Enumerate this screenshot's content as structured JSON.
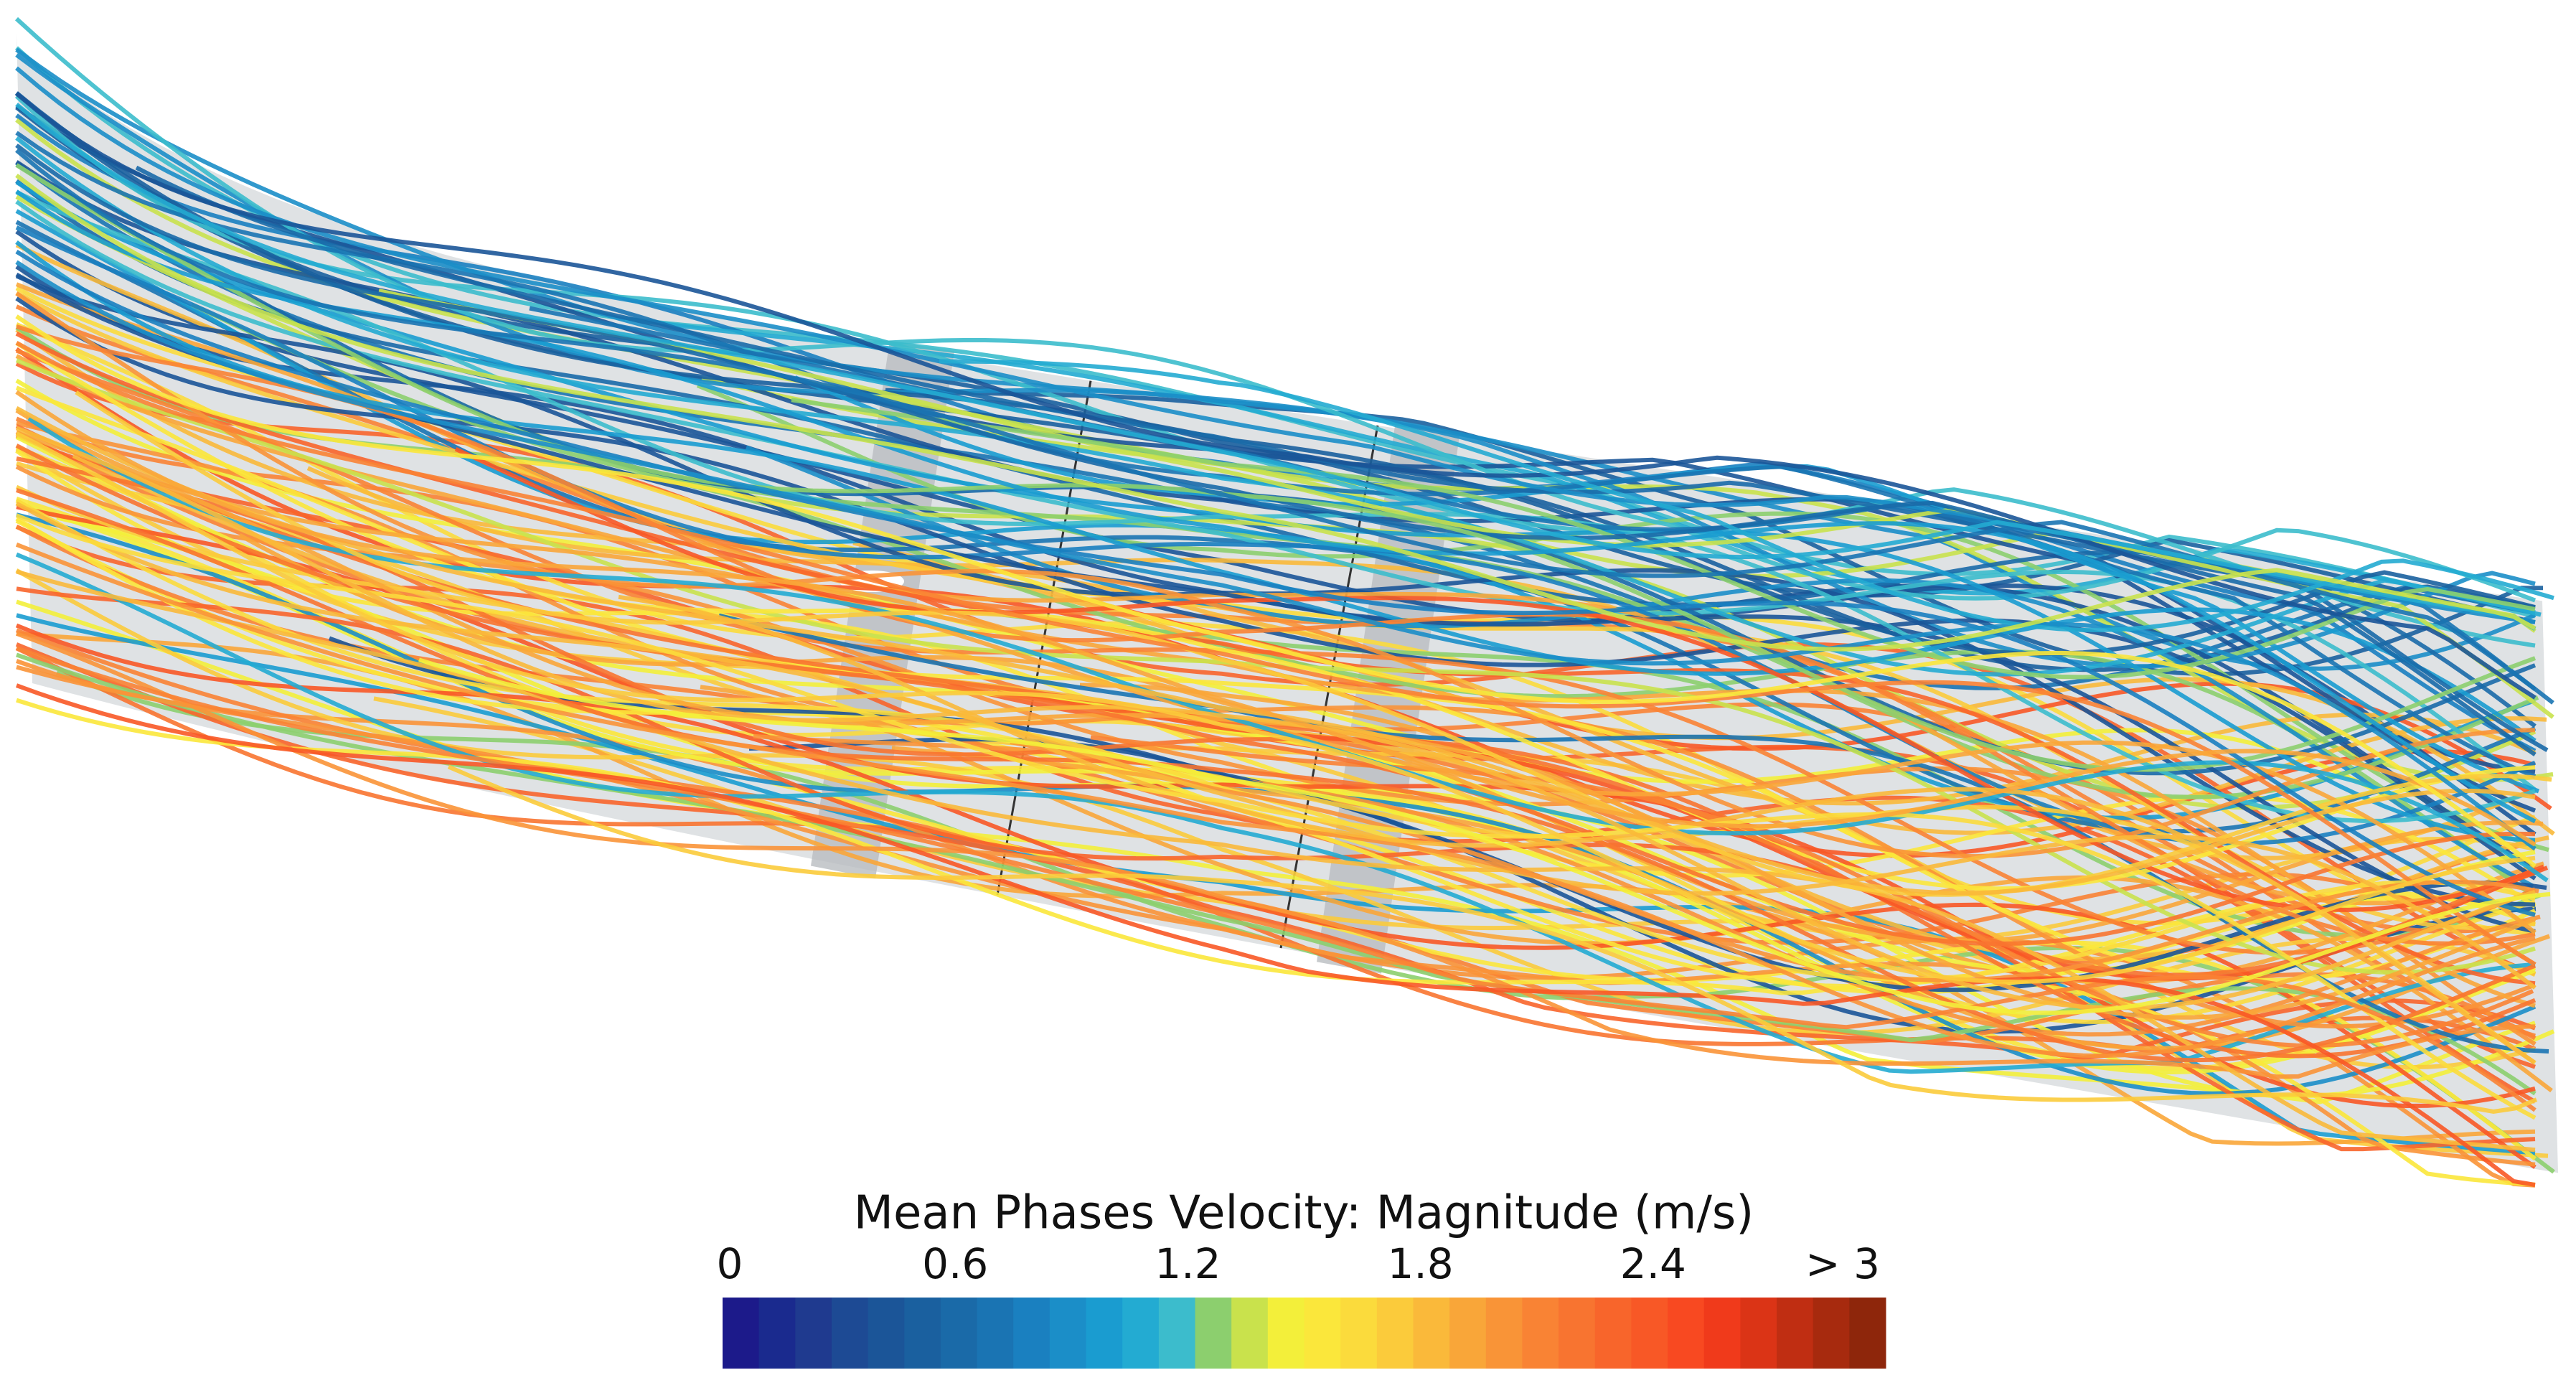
{
  "colorbar": {
    "title": "Mean Phases Velocity: Magnitude (m/s)",
    "lim": [
      0,
      3
    ],
    "ticks": [
      0,
      0.6,
      1.2,
      1.8,
      2.4,
      {
        "value": 3,
        "label": "> 3"
      }
    ],
    "colors": [
      "#1c1a8a",
      "#1a2a8e",
      "#1f3a8f",
      "#1d4a94",
      "#1b5598",
      "#1a609f",
      "#1a6aa8",
      "#1a74b3",
      "#1a80c0",
      "#1b8ec8",
      "#1a9cd0",
      "#23abd2",
      "#3cbccc",
      "#8ccf6e",
      "#c9e24c",
      "#f3ef3a",
      "#fbe73b",
      "#fbdb3c",
      "#fbcb3b",
      "#fab93a",
      "#f9a639",
      "#f99437",
      "#f98334",
      "#f87430",
      "#f8652b",
      "#f85826",
      "#f84921",
      "#f03a1b",
      "#db3416",
      "#c02e12",
      "#a72a0e",
      "#8e260b"
    ]
  }
}
